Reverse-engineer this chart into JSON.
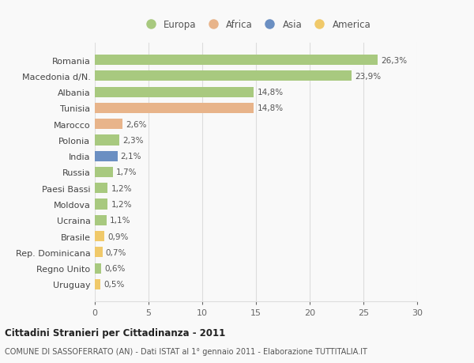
{
  "countries": [
    "Romania",
    "Macedonia d/N.",
    "Albania",
    "Tunisia",
    "Marocco",
    "Polonia",
    "India",
    "Russia",
    "Paesi Bassi",
    "Moldova",
    "Ucraina",
    "Brasile",
    "Rep. Dominicana",
    "Regno Unito",
    "Uruguay"
  ],
  "values": [
    26.3,
    23.9,
    14.8,
    14.8,
    2.6,
    2.3,
    2.1,
    1.7,
    1.2,
    1.2,
    1.1,
    0.9,
    0.7,
    0.6,
    0.5
  ],
  "labels": [
    "26,3%",
    "23,9%",
    "14,8%",
    "14,8%",
    "2,6%",
    "2,3%",
    "2,1%",
    "1,7%",
    "1,2%",
    "1,2%",
    "1,1%",
    "0,9%",
    "0,7%",
    "0,6%",
    "0,5%"
  ],
  "continents": [
    "Europa",
    "Europa",
    "Europa",
    "Africa",
    "Africa",
    "Europa",
    "Asia",
    "Europa",
    "Europa",
    "Europa",
    "Europa",
    "America",
    "America",
    "Europa",
    "America"
  ],
  "colors": {
    "Europa": "#a8c97f",
    "Africa": "#e8b48a",
    "Asia": "#6b8fc2",
    "America": "#f0c96a"
  },
  "legend_order": [
    "Europa",
    "Africa",
    "Asia",
    "America"
  ],
  "xlim": [
    0,
    30
  ],
  "xticks": [
    0,
    5,
    10,
    15,
    20,
    25,
    30
  ],
  "title": "Cittadini Stranieri per Cittadinanza - 2011",
  "subtitle": "COMUNE DI SASSOFERRATO (AN) - Dati ISTAT al 1° gennaio 2011 - Elaborazione TUTTITALIA.IT",
  "background_color": "#f9f9f9",
  "grid_color": "#dddddd",
  "bar_height": 0.65
}
